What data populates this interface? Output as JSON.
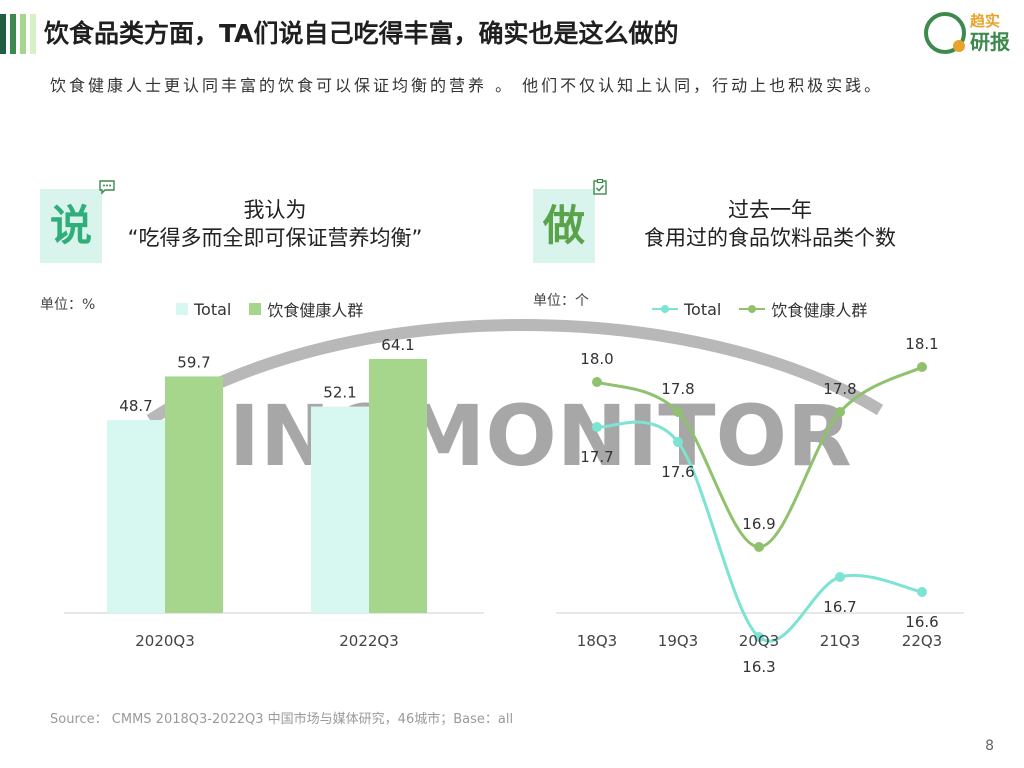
{
  "header": {
    "title": "饮食品类方面，TA们说自己吃得丰富，确实也是这么做的",
    "subtitle": "饮食健康人士更认同丰富的饮食可以保证均衡的营养 。 他们不仅认知上认同，行动上也积极实践。",
    "brand_top": "趋实",
    "brand_bottom": "研报"
  },
  "panels": {
    "left": {
      "badge": "说",
      "heading_line1": "我认为",
      "heading_line2": "“吃得多而全即可保证营养均衡”",
      "unit": "单位：%",
      "icon": "chat-bubble-icon"
    },
    "right": {
      "badge": "做",
      "heading_line1": "过去一年",
      "heading_line2": "食用过的食品饮料品类个数",
      "unit": "单位：个",
      "icon": "clipboard-check-icon"
    }
  },
  "watermark": "SINOMONITOR",
  "footer": {
    "source": "Source： CMMS 2018Q3-2022Q3 中国市场与媒体研究，46城市；Base：all",
    "page": "8"
  },
  "colors": {
    "total": "#d7f7f1",
    "health_bar": "#a6d58c",
    "total_line": "#7de3d2",
    "health_line": "#8fc16e",
    "accent_dark": "#1f5f3f",
    "badge_left_text": "#2fae7a",
    "badge_right_text": "#5aa34a"
  },
  "chart_data": [
    {
      "type": "bar",
      "categories": [
        "2020Q3",
        "2022Q3"
      ],
      "series": [
        {
          "name": "Total",
          "values": [
            48.7,
            52.1
          ]
        },
        {
          "name": "饮食健康人群",
          "values": [
            59.7,
            64.1
          ]
        }
      ],
      "ylim": [
        0,
        100
      ]
    },
    {
      "type": "line",
      "categories": [
        "18Q3",
        "19Q3",
        "20Q3",
        "21Q3",
        "22Q3"
      ],
      "series": [
        {
          "name": "Total",
          "values": [
            17.7,
            17.6,
            16.3,
            16.7,
            16.6
          ]
        },
        {
          "name": "饮食健康人群",
          "values": [
            18.0,
            17.8,
            16.9,
            17.8,
            18.1
          ]
        }
      ]
    }
  ]
}
